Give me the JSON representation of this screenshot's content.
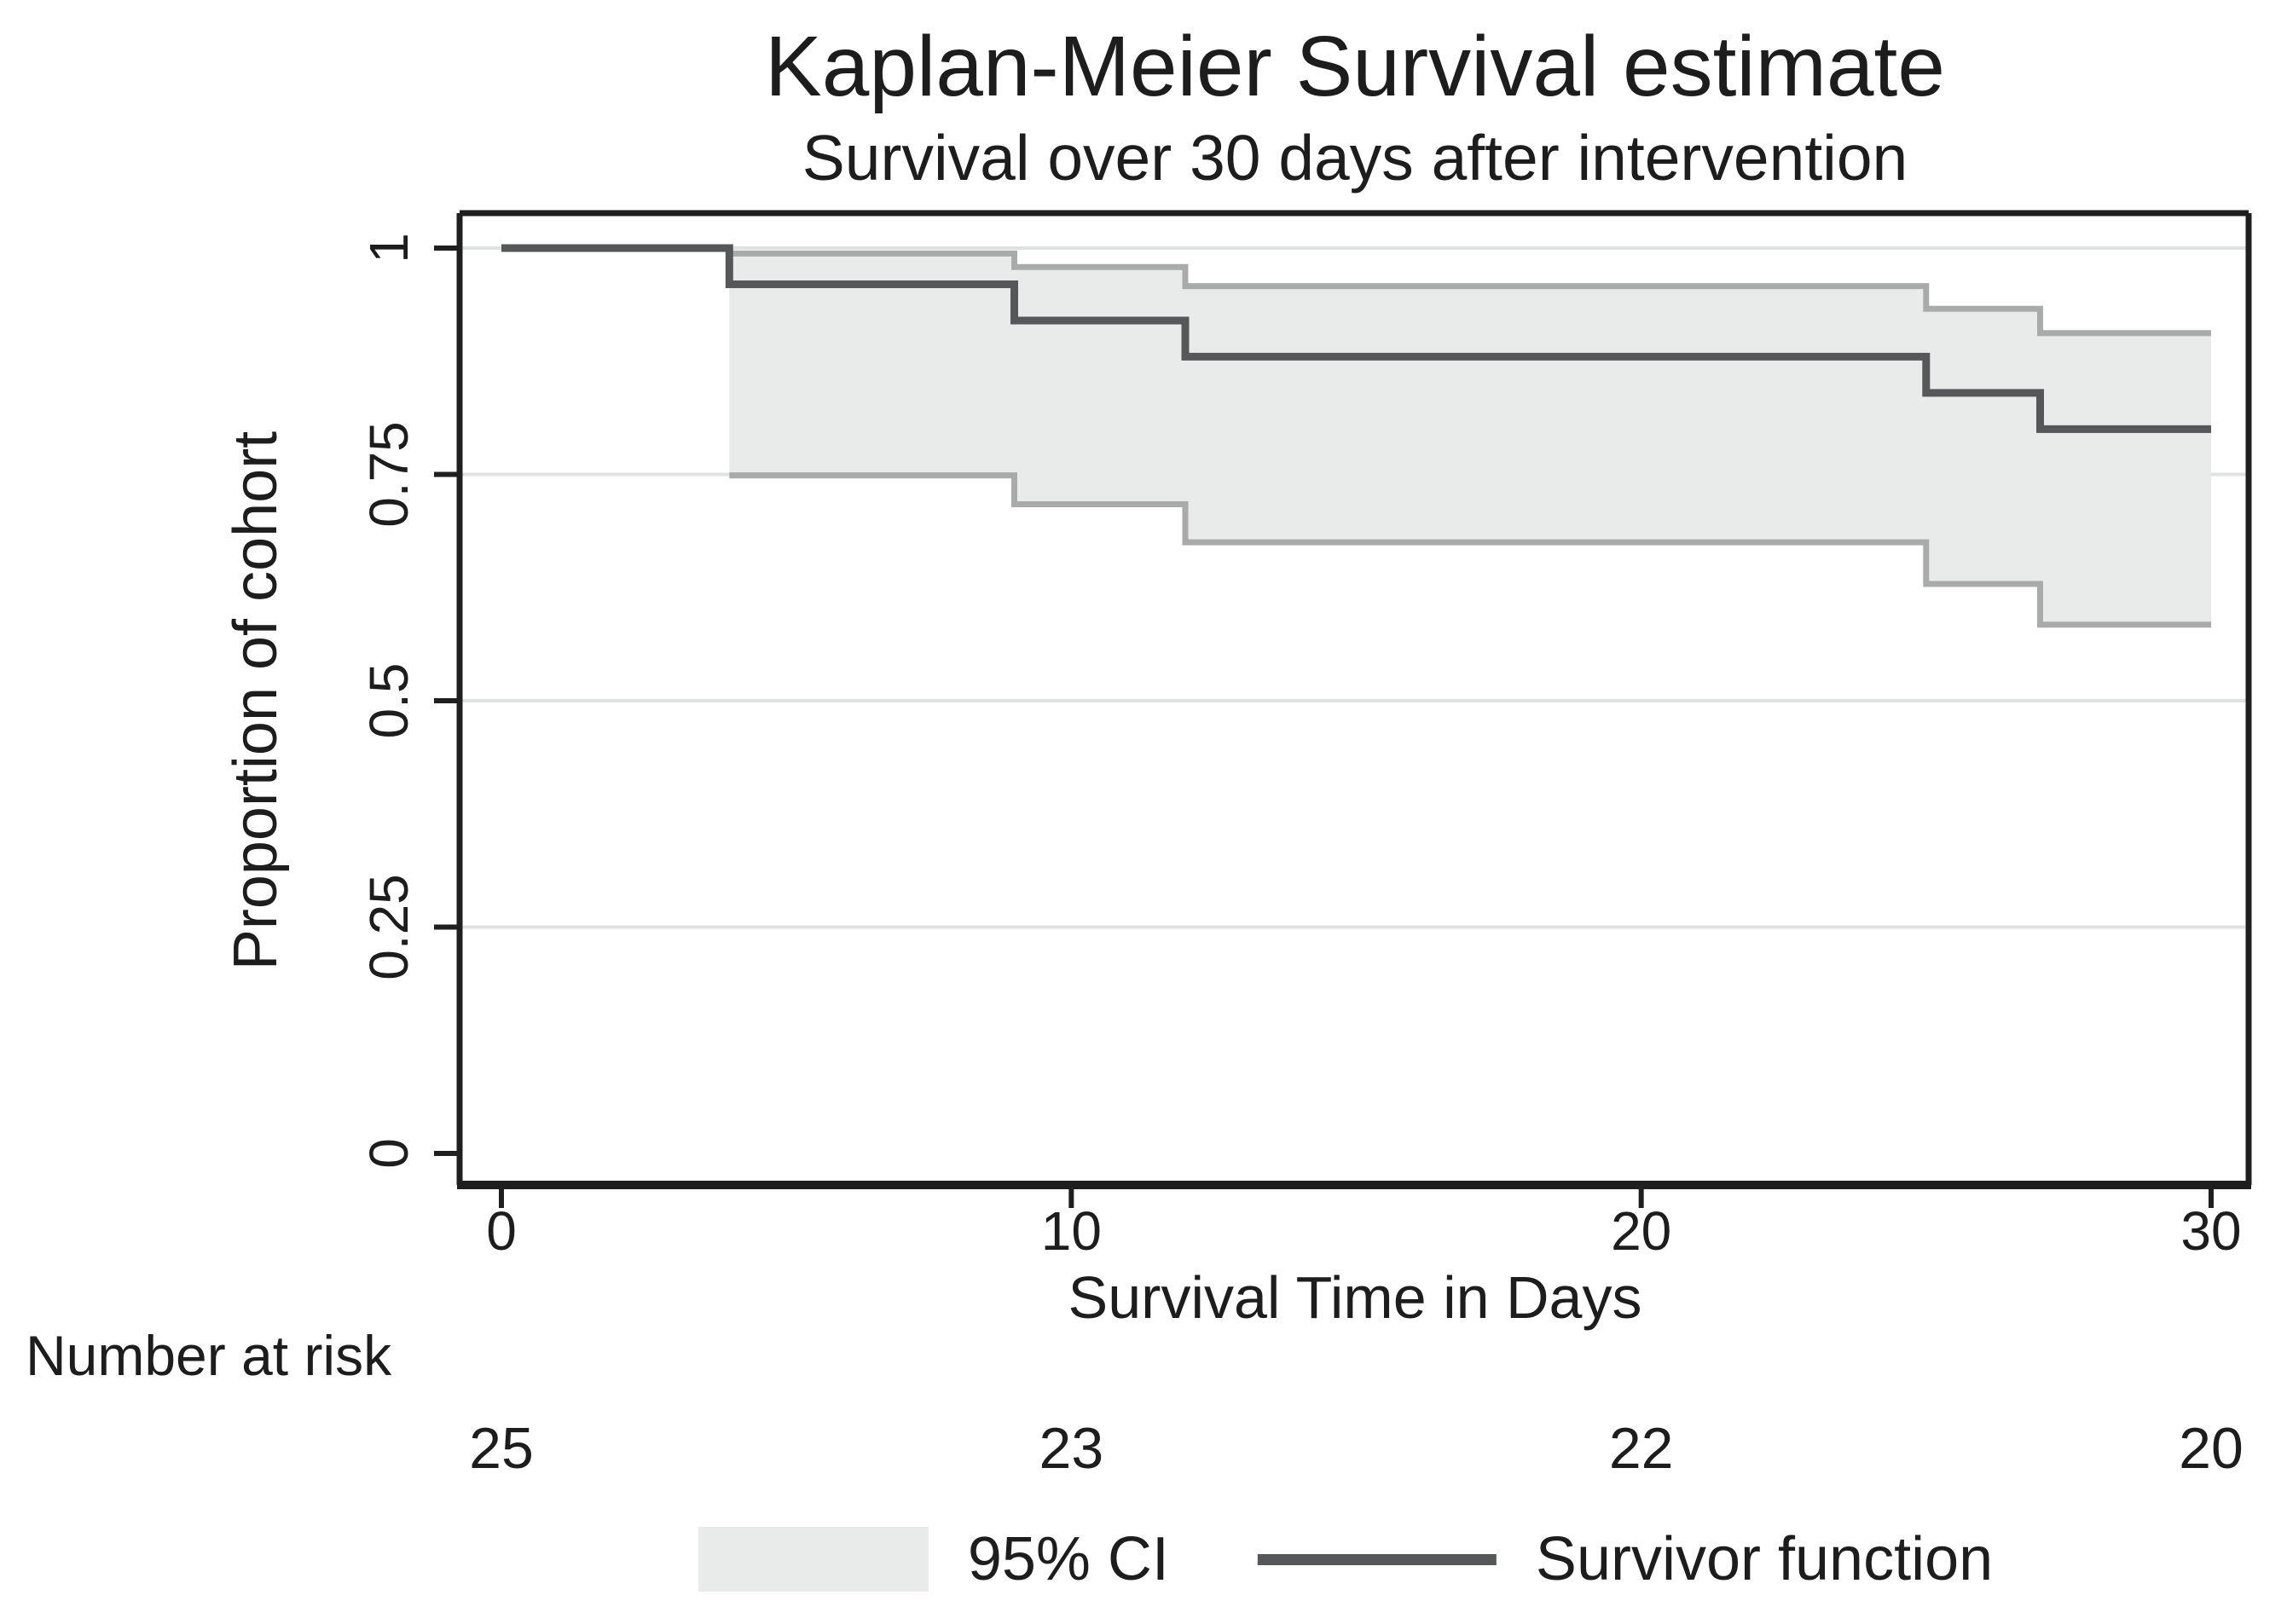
{
  "title": "Kaplan-Meier Survival estimate",
  "subtitle": "Survival over 30 days after intervention",
  "axes": {
    "x": {
      "label": "Survival Time in Days",
      "ticks": [
        {
          "value": 0,
          "label": "0"
        },
        {
          "value": 10,
          "label": "10"
        },
        {
          "value": 20,
          "label": "20"
        },
        {
          "value": 30,
          "label": "30"
        }
      ]
    },
    "y": {
      "label": "Proportion of cohort",
      "ticks": [
        {
          "value": 0,
          "label": "0"
        },
        {
          "value": 0.25,
          "label": "0.25"
        },
        {
          "value": 0.5,
          "label": "0.5"
        },
        {
          "value": 0.75,
          "label": "0.75"
        },
        {
          "value": 1,
          "label": "1"
        }
      ]
    }
  },
  "number_at_risk": {
    "label": "Number at risk",
    "entries": [
      {
        "time": 0,
        "count": "25"
      },
      {
        "time": 10,
        "count": "23"
      },
      {
        "time": 20,
        "count": "22"
      },
      {
        "time": 30,
        "count": "20"
      }
    ]
  },
  "legend": {
    "ci_label": "95% CI",
    "line_label": "Survivor function"
  },
  "colors": {
    "survivor_line": "#565758",
    "ci_fill": "#e9eaea",
    "ci_edge": "#a9abab",
    "gridline": "#e0e2e2",
    "axis": "#1f1f1f",
    "text": "#1d1d1d",
    "background": "#ffffff"
  },
  "chart_data": {
    "type": "line",
    "subtype": "kaplan-meier-step",
    "title": "Kaplan-Meier Survival estimate",
    "subtitle": "Survival over 30 days after intervention",
    "xlabel": "Survival Time in Days",
    "ylabel": "Proportion of cohort",
    "xlim": [
      0,
      30
    ],
    "ylim": [
      0,
      1
    ],
    "x_ticks": [
      0,
      10,
      20,
      30
    ],
    "y_ticks": [
      0,
      0.25,
      0.5,
      0.75,
      1
    ],
    "grid_ticks": [
      0.25,
      0.5,
      0.75,
      1
    ],
    "grid": "horizontal",
    "legend_position": "bottom",
    "series": [
      {
        "name": "Survivor function",
        "style": "step-after",
        "x": [
          0,
          4,
          9,
          12,
          25,
          27,
          30
        ],
        "y": [
          1.0,
          0.96,
          0.92,
          0.88,
          0.84,
          0.8,
          0.8
        ]
      },
      {
        "name": "95% CI upper",
        "style": "step-after",
        "x": [
          4,
          9,
          12,
          25,
          27,
          30
        ],
        "y": [
          0.994,
          0.979,
          0.958,
          0.933,
          0.906,
          0.906
        ]
      },
      {
        "name": "95% CI lower",
        "style": "step-after",
        "x": [
          4,
          9,
          12,
          25,
          27,
          30
        ],
        "y": [
          0.749,
          0.717,
          0.675,
          0.629,
          0.584,
          0.584
        ]
      }
    ],
    "number_at_risk": {
      "times": [
        0,
        10,
        20,
        30
      ],
      "counts": [
        25,
        23,
        22,
        20
      ]
    }
  }
}
